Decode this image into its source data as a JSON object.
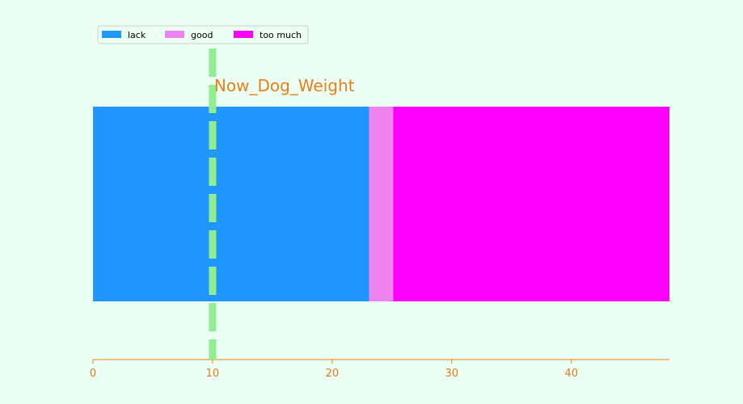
{
  "chart_data": {
    "type": "bar",
    "orientation": "horizontal",
    "stacked": true,
    "categories": [
      ""
    ],
    "series": [
      {
        "name": "lack",
        "values": [
          23.1
        ],
        "color": "#2196ff"
      },
      {
        "name": "good",
        "values": [
          2.0
        ],
        "color": "#ee82ee"
      },
      {
        "name": "too much",
        "values": [
          23.1
        ],
        "color": "#ff00ff"
      }
    ],
    "xlim": [
      0,
      48.2
    ],
    "xticks": [
      0,
      10,
      20,
      30,
      40
    ],
    "xtick_labels": [
      "0",
      "10",
      "20",
      "30",
      "40"
    ],
    "reference_line": {
      "x": 10,
      "color": "#90ee90",
      "style": "dashed"
    },
    "annotation": {
      "text": "Now_Dog_Weight",
      "x": 10,
      "color": "#e8801a"
    },
    "legend": {
      "placement": "top-left",
      "columns": 3
    },
    "grid": false,
    "axis_color": "#e8801a",
    "background": "#ecfff5"
  }
}
